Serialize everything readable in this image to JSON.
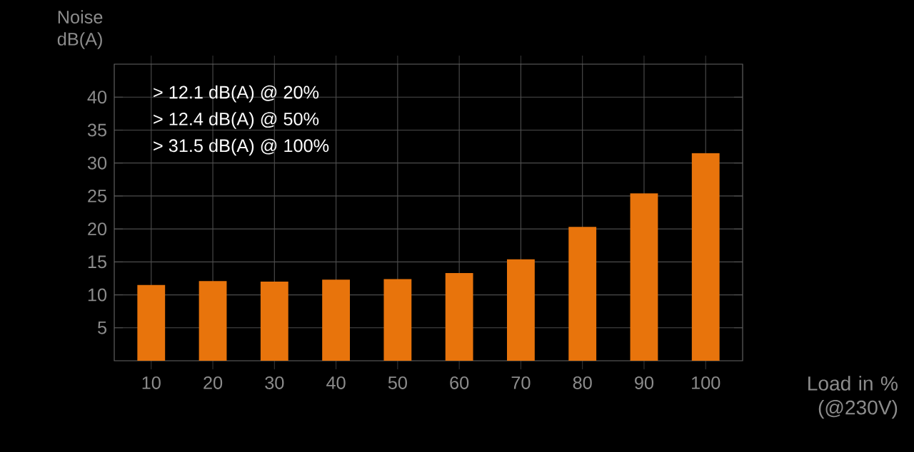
{
  "chart_data": {
    "type": "bar",
    "ylabel": "Noise dB(A)",
    "xlabel": "Load in % (@230V)",
    "categories": [
      "10",
      "20",
      "30",
      "40",
      "50",
      "60",
      "70",
      "80",
      "90",
      "100"
    ],
    "values": [
      11.5,
      12.1,
      12.0,
      12.3,
      12.4,
      13.3,
      15.4,
      20.3,
      25.4,
      31.5
    ],
    "color": "#e8740c",
    "ylim": [
      0,
      45
    ],
    "yticks": [
      5,
      10,
      15,
      20,
      25,
      30,
      35,
      40
    ],
    "grid": true,
    "annotations": [
      "> 12.1  dB(A) @ 20%",
      "> 12.4  dB(A) @ 50%",
      "> 31.5  dB(A) @ 100%"
    ]
  }
}
